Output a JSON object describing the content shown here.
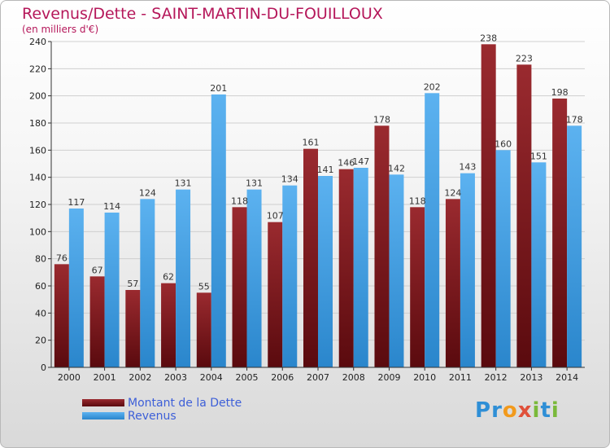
{
  "header": {
    "title": "Revenus/Dette - SAINT-MARTIN-DU-FOUILLOUX",
    "subtitle": "(en milliers d'€)"
  },
  "colors": {
    "dette": "#7a1a1f",
    "revenus": "#3d9de6",
    "title": "#b5175a",
    "legend_text": "#3d5fd8"
  },
  "legend": {
    "items": [
      {
        "label": "Montant de la Dette",
        "color": "#7a1a1f"
      },
      {
        "label": "Revenus",
        "color": "#3d9de6"
      }
    ]
  },
  "logo": {
    "text": "Proxiti",
    "letters": [
      {
        "ch": "P",
        "color": "#2f8fd6"
      },
      {
        "ch": "r",
        "color": "#2f8fd6"
      },
      {
        "ch": "o",
        "color": "#f29a1c"
      },
      {
        "ch": "x",
        "color": "#e0503a"
      },
      {
        "ch": "i",
        "color": "#7ab93a"
      },
      {
        "ch": "t",
        "color": "#2f8fd6"
      },
      {
        "ch": "i",
        "color": "#7ab93a"
      }
    ]
  },
  "chart_data": {
    "type": "bar",
    "categories": [
      "2000",
      "2001",
      "2002",
      "2003",
      "2004",
      "2005",
      "2006",
      "2007",
      "2008",
      "2009",
      "2010",
      "2011",
      "2012",
      "2013",
      "2014"
    ],
    "series": [
      {
        "name": "Montant de la Dette",
        "values": [
          76,
          67,
          57,
          62,
          55,
          118,
          107,
          161,
          146,
          178,
          118,
          124,
          238,
          223,
          198
        ]
      },
      {
        "name": "Revenus",
        "values": [
          117,
          114,
          124,
          131,
          201,
          131,
          134,
          141,
          147,
          142,
          202,
          143,
          160,
          151,
          178
        ]
      }
    ],
    "ylim": [
      0,
      240
    ],
    "yticks": [
      0,
      20,
      40,
      60,
      80,
      100,
      120,
      140,
      160,
      180,
      200,
      220,
      240
    ],
    "grid": true,
    "legend_position": "bottom-left"
  }
}
